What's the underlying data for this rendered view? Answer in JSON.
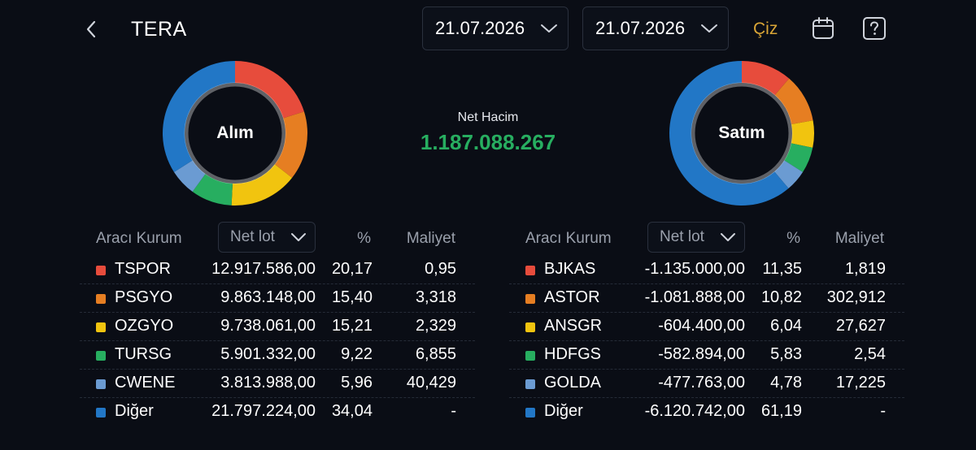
{
  "header": {
    "title": "TERA",
    "date_from": "21.07.2026",
    "date_to": "21.07.2026",
    "draw_label": "Çiz"
  },
  "summary": {
    "buy_label": "Alım",
    "sell_label": "Satım",
    "net_volume_label": "Net Hacim",
    "net_volume_value": "1.187.088.267"
  },
  "colors": {
    "red": "#e74c3c",
    "orange": "#e67e22",
    "yellow": "#f1c40f",
    "green": "#27ae60",
    "lightblue": "#6b9bd2",
    "blue": "#2277c6",
    "accent": "#d9a536"
  },
  "buy": {
    "col_broker": "Aracı Kurum",
    "col_metric": "Net lot",
    "col_pct": "%",
    "col_cost": "Maliyet",
    "rows": [
      {
        "name": "TSPOR",
        "lot": "12.917.586,00",
        "pct": "20,17",
        "cost": "0,95",
        "color": "#e74c3c",
        "share": 20.17
      },
      {
        "name": "PSGYO",
        "lot": "9.863.148,00",
        "pct": "15,40",
        "cost": "3,318",
        "color": "#e67e22",
        "share": 15.4
      },
      {
        "name": "OZGYO",
        "lot": "9.738.061,00",
        "pct": "15,21",
        "cost": "2,329",
        "color": "#f1c40f",
        "share": 15.21
      },
      {
        "name": "TURSG",
        "lot": "5.901.332,00",
        "pct": "9,22",
        "cost": "6,855",
        "color": "#27ae60",
        "share": 9.22
      },
      {
        "name": "CWENE",
        "lot": "3.813.988,00",
        "pct": "5,96",
        "cost": "40,429",
        "color": "#6b9bd2",
        "share": 5.96
      },
      {
        "name": "Diğer",
        "lot": "21.797.224,00",
        "pct": "34,04",
        "cost": "-",
        "color": "#2277c6",
        "share": 34.04
      }
    ]
  },
  "sell": {
    "col_broker": "Aracı Kurum",
    "col_metric": "Net lot",
    "col_pct": "%",
    "col_cost": "Maliyet",
    "rows": [
      {
        "name": "BJKAS",
        "lot": "-1.135.000,00",
        "pct": "11,35",
        "cost": "1,819",
        "color": "#e74c3c",
        "share": 11.35
      },
      {
        "name": "ASTOR",
        "lot": "-1.081.888,00",
        "pct": "10,82",
        "cost": "302,912",
        "color": "#e67e22",
        "share": 10.82
      },
      {
        "name": "ANSGR",
        "lot": "-604.400,00",
        "pct": "6,04",
        "cost": "27,627",
        "color": "#f1c40f",
        "share": 6.04
      },
      {
        "name": "HDFGS",
        "lot": "-582.894,00",
        "pct": "5,83",
        "cost": "2,54",
        "color": "#27ae60",
        "share": 5.83
      },
      {
        "name": "GOLDA",
        "lot": "-477.763,00",
        "pct": "4,78",
        "cost": "17,225",
        "color": "#6b9bd2",
        "share": 4.78
      },
      {
        "name": "Diğer",
        "lot": "-6.120.742,00",
        "pct": "61,19",
        "cost": "-",
        "color": "#2277c6",
        "share": 61.19
      }
    ]
  }
}
